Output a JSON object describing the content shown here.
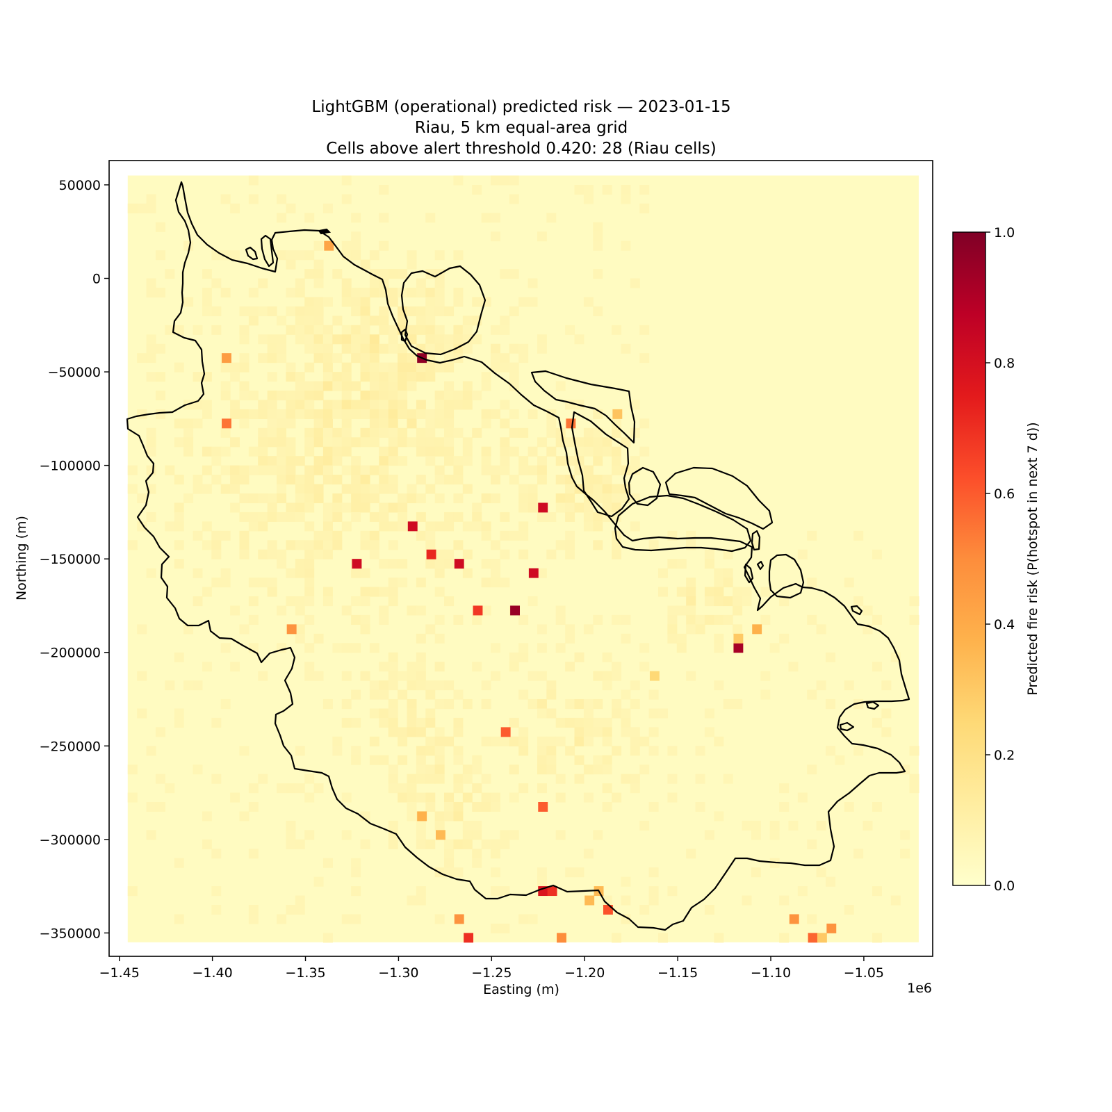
{
  "chart_data": {
    "type": "heatmap",
    "title": "LightGBM (operational) predicted risk — 2023-01-15",
    "subtitle": "Riau, 5 km equal-area grid",
    "subtitle2": "Cells above alert threshold 0.420: 28 (Riau cells)",
    "xlabel": "Easting (m)",
    "ylabel": "Northing (m)",
    "x_offset_label": "1e6",
    "colorbar_label": "Predicted fire risk (P(hotspot in next 7 d))",
    "colormap": "YlOrRd",
    "xlim": [
      -1.4555,
      -1.013
    ],
    "ylim": [
      -362500,
      63000
    ],
    "grid_extent": {
      "x": [
        -1.4455,
        -1.0205
      ],
      "y": [
        -355000,
        55000
      ]
    },
    "colorbar_range": [
      0.0,
      1.0
    ],
    "x_ticks": [
      -1.45,
      -1.4,
      -1.35,
      -1.3,
      -1.25,
      -1.2,
      -1.15,
      -1.1,
      -1.05
    ],
    "x_tick_labels": [
      "−1.45",
      "−1.40",
      "−1.35",
      "−1.30",
      "−1.25",
      "−1.20",
      "−1.15",
      "−1.10",
      "−1.05"
    ],
    "y_ticks": [
      50000,
      0,
      -50000,
      -100000,
      -150000,
      -200000,
      -250000,
      -300000,
      -350000
    ],
    "y_tick_labels": [
      "50000",
      "0",
      "−50000",
      "−100000",
      "−150000",
      "−200000",
      "−250000",
      "−300000",
      "−350000"
    ],
    "colorbar_ticks": [
      0.0,
      0.2,
      0.4,
      0.6,
      0.8,
      1.0
    ],
    "colorbar_tick_labels": [
      "0.0",
      "0.2",
      "0.4",
      "0.6",
      "0.8",
      "1.0"
    ],
    "alert_threshold": 0.42,
    "cells_above_threshold": 28,
    "background_risk_range": [
      0.0,
      0.2
    ],
    "high_risk_cells": [
      {
        "x": -1.3375,
        "y": 17500,
        "value": 0.42
      },
      {
        "x": -1.3925,
        "y": -42500,
        "value": 0.45
      },
      {
        "x": -1.3925,
        "y": -77500,
        "value": 0.55
      },
      {
        "x": -1.2875,
        "y": -42500,
        "value": 0.97
      },
      {
        "x": -1.2075,
        "y": -77500,
        "value": 0.55
      },
      {
        "x": -1.1825,
        "y": -72500,
        "value": 0.32
      },
      {
        "x": -1.2225,
        "y": -122500,
        "value": 0.82
      },
      {
        "x": -1.2925,
        "y": -132500,
        "value": 0.82
      },
      {
        "x": -1.2825,
        "y": -147500,
        "value": 0.72
      },
      {
        "x": -1.3225,
        "y": -152500,
        "value": 0.82
      },
      {
        "x": -1.2675,
        "y": -152500,
        "value": 0.82
      },
      {
        "x": -1.2275,
        "y": -157500,
        "value": 0.82
      },
      {
        "x": -1.2575,
        "y": -177500,
        "value": 0.68
      },
      {
        "x": -1.2375,
        "y": -177500,
        "value": 0.95
      },
      {
        "x": -1.3575,
        "y": -187500,
        "value": 0.48
      },
      {
        "x": -1.1175,
        "y": -197500,
        "value": 0.92
      },
      {
        "x": -1.1075,
        "y": -187500,
        "value": 0.38
      },
      {
        "x": -1.1175,
        "y": -192500,
        "value": 0.3
      },
      {
        "x": -1.1625,
        "y": -212500,
        "value": 0.25
      },
      {
        "x": -1.2425,
        "y": -242500,
        "value": 0.6
      },
      {
        "x": -1.2225,
        "y": -282500,
        "value": 0.6
      },
      {
        "x": -1.2875,
        "y": -287500,
        "value": 0.38
      },
      {
        "x": -1.2775,
        "y": -297500,
        "value": 0.35
      },
      {
        "x": -1.2225,
        "y": -327500,
        "value": 0.78
      },
      {
        "x": -1.2175,
        "y": -327500,
        "value": 0.7
      },
      {
        "x": -1.1925,
        "y": -327500,
        "value": 0.35
      },
      {
        "x": -1.1975,
        "y": -332500,
        "value": 0.35
      },
      {
        "x": -1.1875,
        "y": -337500,
        "value": 0.62
      },
      {
        "x": -1.2675,
        "y": -342500,
        "value": 0.48
      },
      {
        "x": -1.2625,
        "y": -352500,
        "value": 0.7
      },
      {
        "x": -1.2125,
        "y": -352500,
        "value": 0.5
      },
      {
        "x": -1.0875,
        "y": -342500,
        "value": 0.48
      },
      {
        "x": -1.0675,
        "y": -347500,
        "value": 0.48
      },
      {
        "x": -1.0775,
        "y": -352500,
        "value": 0.58
      },
      {
        "x": -1.0725,
        "y": -352500,
        "value": 0.3
      }
    ]
  }
}
